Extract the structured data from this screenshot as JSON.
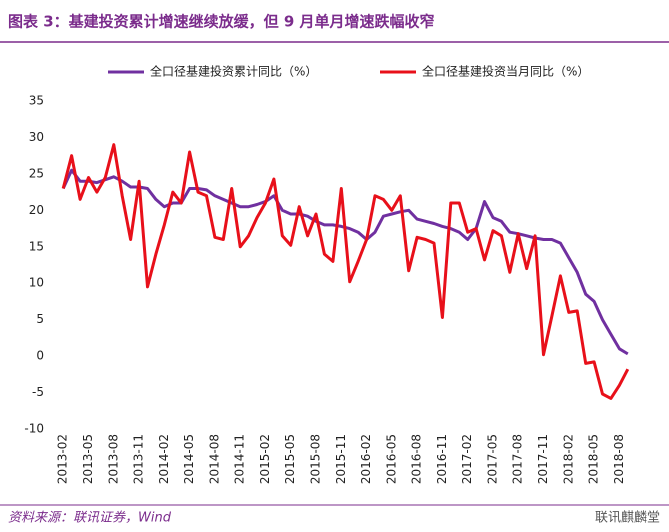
{
  "chart_data": {
    "type": "line",
    "title": "图表 3：基建投资累计增速继续放缓，但 9 月单月增速跌幅收窄",
    "source": "资料来源：联讯证券，Wind",
    "watermark": "联讯麒麟堂",
    "categories": [
      "2013-02",
      null,
      null,
      "2013-05",
      null,
      null,
      "2013-08",
      null,
      null,
      "2013-11",
      null,
      null,
      "2014-02",
      null,
      null,
      "2014-05",
      null,
      null,
      "2014-08",
      null,
      null,
      "2014-11",
      null,
      null,
      "2015-02",
      null,
      null,
      "2015-05",
      null,
      null,
      "2015-08",
      null,
      null,
      "2015-11",
      null,
      null,
      "2016-02",
      null,
      null,
      "2016-05",
      null,
      null,
      "2016-08",
      null,
      null,
      "2016-11",
      null,
      null,
      "2017-02",
      null,
      null,
      "2017-05",
      null,
      null,
      "2017-08",
      null,
      null,
      "2017-11",
      null,
      null,
      "2018-02",
      null,
      null,
      "2018-05",
      null,
      null,
      "2018-08",
      null
    ],
    "series": [
      {
        "name": "全口径基建投资累计同比（%）",
        "color": "#7030a0",
        "values": [
          23,
          25.5,
          24,
          24,
          23.8,
          24.2,
          24.6,
          24,
          23.2,
          23.2,
          23.0,
          21.5,
          20.5,
          21,
          21,
          23,
          23,
          22.8,
          22,
          21.5,
          21,
          20.5,
          20.5,
          20.8,
          21.2,
          22,
          20,
          19.5,
          19.5,
          19.2,
          18.5,
          18,
          18,
          17.8,
          17.5,
          17,
          16,
          17,
          19.2,
          19.5,
          19.8,
          20,
          18.8,
          18.5,
          18.2,
          17.8,
          17.5,
          17,
          16,
          17.5,
          21.2,
          19,
          18.5,
          17,
          16.8,
          16.5,
          16.2,
          16,
          16,
          15.5,
          13.5,
          11.5,
          8.5,
          7.5,
          5,
          3,
          1,
          0.3
        ]
      },
      {
        "name": "全口径基建投资当月同比（%）",
        "color": "#e8101a",
        "values": [
          23,
          27.5,
          21.5,
          24.5,
          22.5,
          24.5,
          29,
          22,
          16,
          24,
          9.5,
          14,
          18,
          22.5,
          21,
          28,
          22.5,
          22,
          16.3,
          16,
          23,
          15,
          16.5,
          19,
          21,
          24.3,
          16.5,
          15.2,
          20.5,
          16.5,
          19.5,
          14,
          13,
          23,
          10.2,
          13,
          16,
          22,
          21.5,
          20,
          22,
          11.7,
          16.3,
          16,
          15.5,
          5.3,
          21,
          21,
          17,
          17.5,
          13.2,
          17.2,
          16.5,
          11.5,
          16.8,
          12,
          16.5,
          0.2,
          5.5,
          11,
          6,
          6.2,
          -1,
          -0.8,
          -5.2,
          -5.8,
          -4,
          -1.8
        ]
      }
    ],
    "ylim": [
      -10,
      35
    ],
    "yticks": [
      -10,
      -5,
      0,
      5,
      10,
      15,
      20,
      25,
      30,
      35
    ],
    "legend": "top"
  }
}
